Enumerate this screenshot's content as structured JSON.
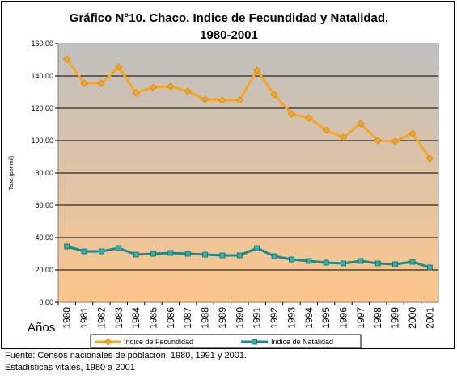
{
  "chart_data": {
    "type": "line",
    "title_line1": "Gráfico N°10. Chaco. Indice de Fecundidad y Natalidad,",
    "title_line2": "1980-2001",
    "ylabel": "Tasa (por mil)",
    "xlabel": "Años",
    "ylim": [
      0,
      160
    ],
    "y_ticks": [
      "0,00",
      "20,00",
      "40,00",
      "60,00",
      "80,00",
      "100,00",
      "120,00",
      "140,00",
      "160,00"
    ],
    "categories": [
      "1980",
      "1981",
      "1982",
      "1983",
      "1984",
      "1985",
      "1986",
      "1987",
      "1988",
      "1989",
      "1990",
      "1991",
      "1992",
      "1993",
      "1994",
      "1995",
      "1996",
      "1997",
      "1998",
      "1999",
      "2000",
      "2001"
    ],
    "grid": true,
    "legend_position": "bottom",
    "series": [
      {
        "name": "Indice de Fecundidad",
        "color": "#f5a623",
        "marker": "diamond",
        "values": [
          150.5,
          135.5,
          135.5,
          145.5,
          129.5,
          133,
          133.5,
          130.5,
          125.5,
          125,
          125,
          143.5,
          128.5,
          116.5,
          114,
          106.5,
          102,
          110.5,
          100,
          99.5,
          104.5,
          89
        ]
      },
      {
        "name": "Indice de Natalidad",
        "color": "#1a8a8a",
        "marker": "square",
        "values": [
          34.5,
          31.5,
          31.5,
          33.5,
          29.5,
          30,
          30.5,
          30,
          29.5,
          29,
          29,
          33.5,
          28.5,
          26.5,
          25.5,
          24.5,
          24,
          25.5,
          24,
          23.5,
          25,
          21.5
        ]
      }
    ]
  },
  "source": {
    "line1": "Fuente: Censos nacionales de población, 1980, 1991 y 2001.",
    "line2": "Estadísticas vitales, 1980 a 2001"
  }
}
